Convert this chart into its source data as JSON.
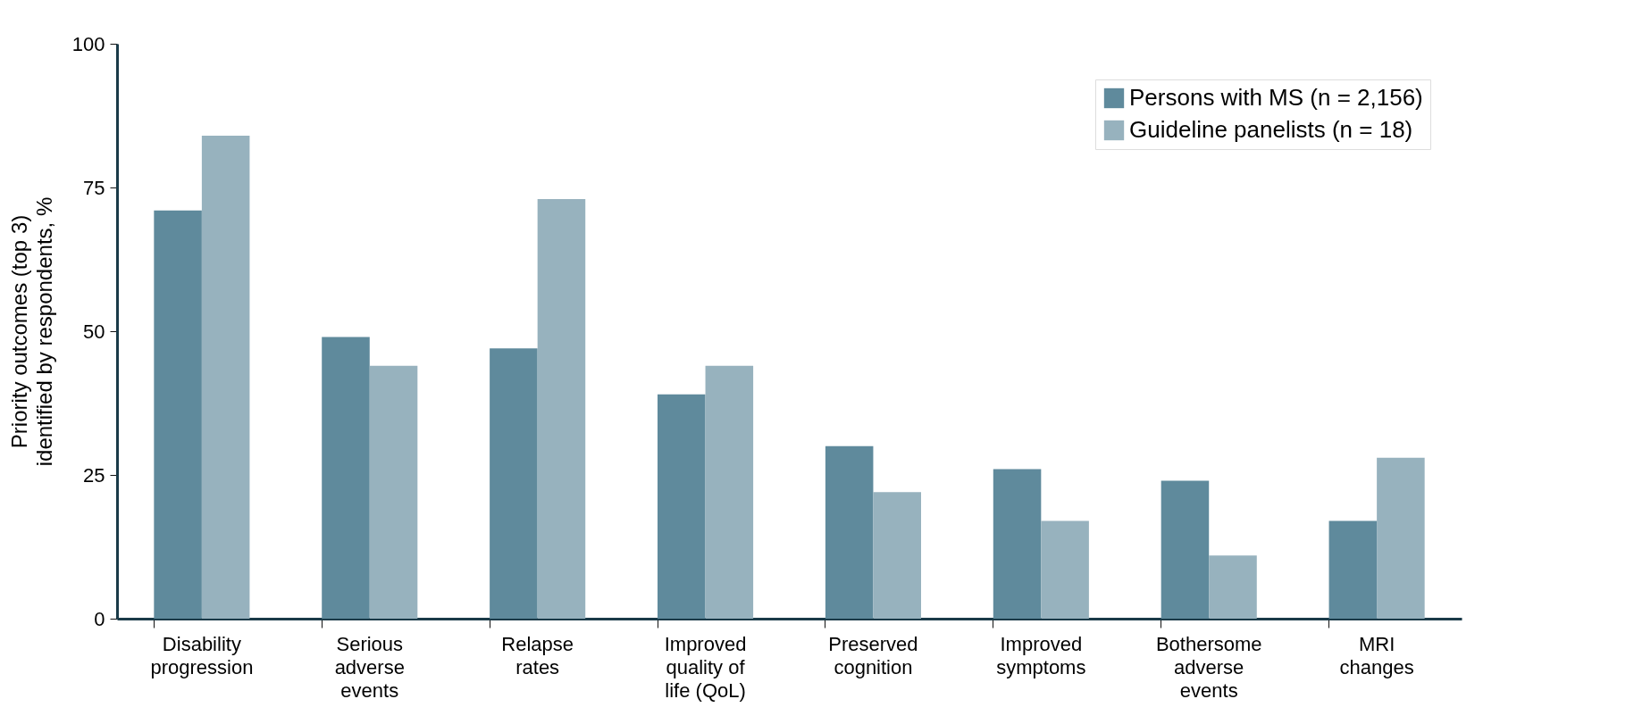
{
  "chart_data": {
    "type": "bar",
    "ylabel": "Priority outcomes (top 3)\nidentified by respondents, %",
    "categories": [
      "Disability\nprogression",
      "Serious\nadverse\nevents",
      "Relapse\nrates",
      "Improved\nquality of\nlife (QoL)",
      "Preserved\ncognition",
      "Improved\nsymptoms",
      "Bothersome\nadverse\nevents",
      "MRI\nchanges"
    ],
    "series": [
      {
        "name": "Persons with MS (n = 2,156)",
        "color": "#5f8a9c",
        "values": [
          71,
          49,
          47,
          39,
          30,
          26,
          24,
          17
        ]
      },
      {
        "name": "Guideline panelists (n = 18)",
        "color": "#97b2be",
        "values": [
          84,
          44,
          73,
          44,
          22,
          17,
          11,
          28
        ]
      }
    ],
    "ylim": [
      0,
      100
    ],
    "yticks": [
      0,
      25,
      50,
      75,
      100
    ],
    "grid": false,
    "legend": "top right"
  }
}
